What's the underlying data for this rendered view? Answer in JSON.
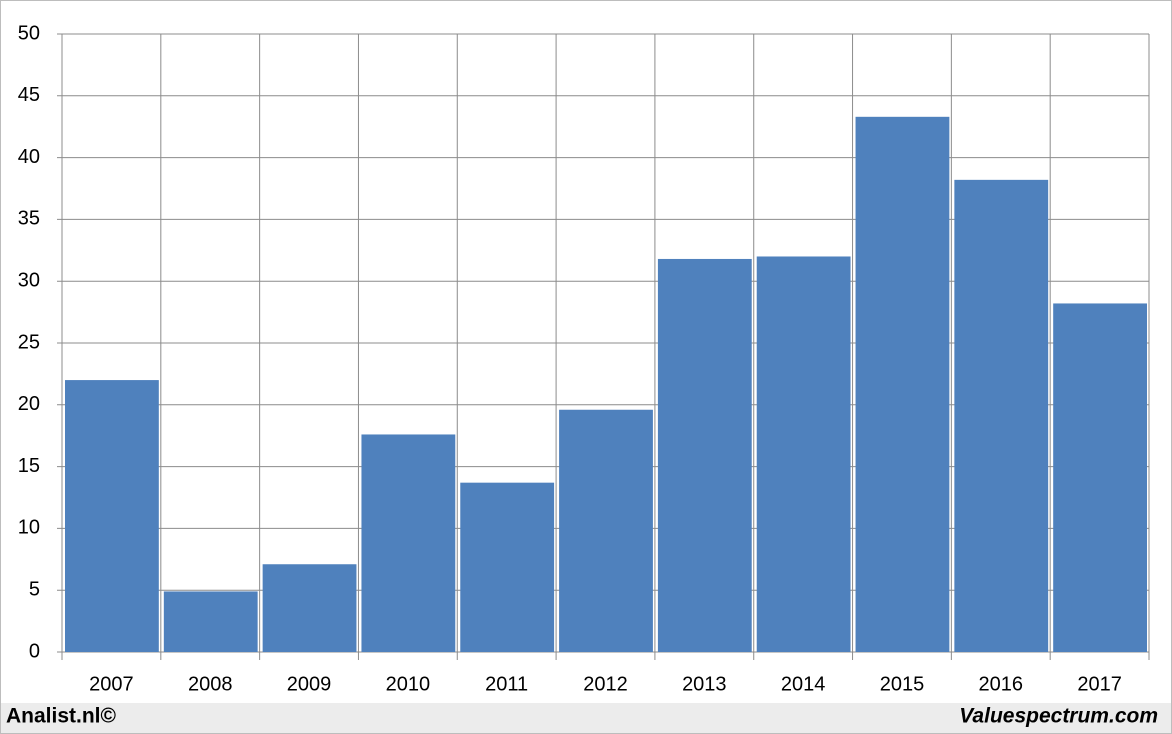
{
  "chart_data": {
    "type": "bar",
    "categories": [
      "2007",
      "2008",
      "2009",
      "2010",
      "2011",
      "2012",
      "2013",
      "2014",
      "2015",
      "2016",
      "2017"
    ],
    "values": [
      22.0,
      4.9,
      7.1,
      17.6,
      13.7,
      19.6,
      31.8,
      32.0,
      43.3,
      38.2,
      28.2
    ],
    "color": "#4f81bd",
    "ylim": [
      0,
      50
    ],
    "yticks": [
      0,
      5,
      10,
      15,
      20,
      25,
      30,
      35,
      40,
      45,
      50
    ],
    "grid": true,
    "footer_left": "Analist.nl©",
    "footer_right": "Valuespectrum.com"
  }
}
